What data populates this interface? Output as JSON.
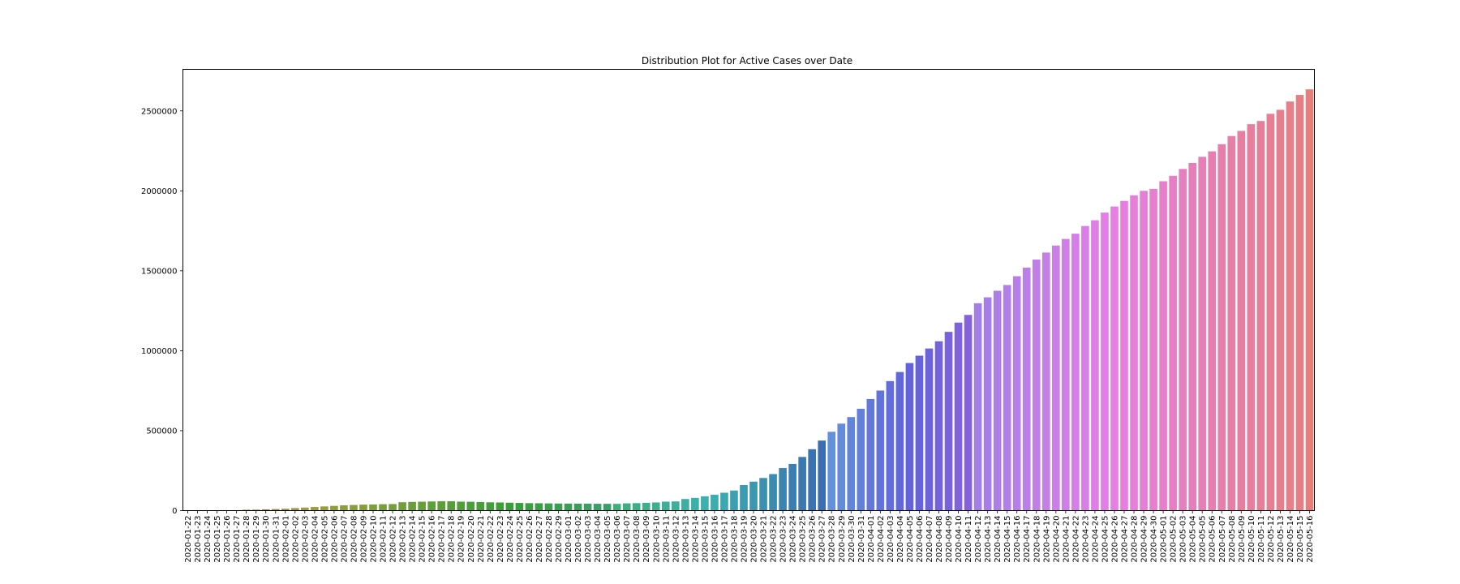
{
  "chart_data": {
    "type": "bar",
    "title": "Distribution Plot for Active Cases over Date",
    "xlabel": "",
    "ylabel": "",
    "ylim": [
      0,
      2760000
    ],
    "yticks": [
      0,
      500000,
      1000000,
      1500000,
      2000000,
      2500000
    ],
    "ytick_labels": [
      "0",
      "500000",
      "1000000",
      "1500000",
      "2000000",
      "2500000"
    ],
    "grid": false,
    "palette": "husl rainbow (brown → olive → green → teal → blue → lavender → magenta → pink)",
    "categories": [
      "2020-01-22",
      "2020-01-23",
      "2020-01-24",
      "2020-01-25",
      "2020-01-26",
      "2020-01-27",
      "2020-01-28",
      "2020-01-29",
      "2020-01-30",
      "2020-01-31",
      "2020-02-01",
      "2020-02-02",
      "2020-02-03",
      "2020-02-04",
      "2020-02-05",
      "2020-02-06",
      "2020-02-07",
      "2020-02-08",
      "2020-02-09",
      "2020-02-10",
      "2020-02-11",
      "2020-02-12",
      "2020-02-13",
      "2020-02-14",
      "2020-02-15",
      "2020-02-16",
      "2020-02-17",
      "2020-02-18",
      "2020-02-19",
      "2020-02-20",
      "2020-02-21",
      "2020-02-22",
      "2020-02-23",
      "2020-02-24",
      "2020-02-25",
      "2020-02-26",
      "2020-02-27",
      "2020-02-28",
      "2020-02-29",
      "2020-03-01",
      "2020-03-02",
      "2020-03-03",
      "2020-03-04",
      "2020-03-05",
      "2020-03-06",
      "2020-03-07",
      "2020-03-08",
      "2020-03-09",
      "2020-03-10",
      "2020-03-11",
      "2020-03-12",
      "2020-03-13",
      "2020-03-14",
      "2020-03-15",
      "2020-03-16",
      "2020-03-17",
      "2020-03-18",
      "2020-03-19",
      "2020-03-20",
      "2020-03-21",
      "2020-03-22",
      "2020-03-23",
      "2020-03-24",
      "2020-03-25",
      "2020-03-26",
      "2020-03-27",
      "2020-03-28",
      "2020-03-29",
      "2020-03-30",
      "2020-03-31",
      "2020-04-01",
      "2020-04-02",
      "2020-04-03",
      "2020-04-04",
      "2020-04-05",
      "2020-04-06",
      "2020-04-07",
      "2020-04-08",
      "2020-04-09",
      "2020-04-10",
      "2020-04-11",
      "2020-04-12",
      "2020-04-13",
      "2020-04-14",
      "2020-04-15",
      "2020-04-16",
      "2020-04-17",
      "2020-04-18",
      "2020-04-19",
      "2020-04-20",
      "2020-04-21",
      "2020-04-22",
      "2020-04-23",
      "2020-04-24",
      "2020-04-25",
      "2020-04-26",
      "2020-04-27",
      "2020-04-28",
      "2020-04-29",
      "2020-04-30",
      "2020-05-01",
      "2020-05-02",
      "2020-05-03",
      "2020-05-04",
      "2020-05-05",
      "2020-05-06",
      "2020-05-07",
      "2020-05-08",
      "2020-05-09",
      "2020-05-10",
      "2020-05-11",
      "2020-05-12",
      "2020-05-13",
      "2020-05-14",
      "2020-05-15",
      "2020-05-16"
    ],
    "values": [
      510,
      600,
      870,
      1290,
      1950,
      2770,
      5300,
      5830,
      7880,
      9500,
      11600,
      15800,
      18900,
      22600,
      26200,
      29500,
      32800,
      35000,
      37300,
      38300,
      40000,
      41000,
      52100,
      54300,
      55600,
      57200,
      58700,
      58500,
      56000,
      55200,
      53700,
      51800,
      50800,
      49300,
      47900,
      46500,
      45900,
      45000,
      44200,
      43800,
      43400,
      43500,
      42700,
      42400,
      42200,
      45300,
      46700,
      48800,
      50900,
      56000,
      57400,
      72500,
      79500,
      89500,
      99500,
      111800,
      125500,
      159800,
      181000,
      204000,
      228500,
      266000,
      292000,
      335500,
      384000,
      438000,
      493000,
      544000,
      585000,
      637000,
      698000,
      751000,
      810000,
      867000,
      923000,
      969000,
      1014000,
      1059000,
      1118000,
      1176000,
      1224000,
      1297000,
      1334000,
      1375000,
      1411000,
      1466000,
      1520000,
      1570000,
      1614000,
      1658000,
      1699000,
      1732000,
      1780000,
      1816000,
      1864000,
      1902000,
      1937000,
      1972000,
      2000000,
      2012000,
      2060000,
      2094000,
      2137000,
      2174000,
      2213000,
      2247000,
      2292000,
      2343000,
      2375000,
      2417000,
      2437000,
      2482000,
      2507000,
      2559000,
      2600000,
      2635000
    ]
  }
}
